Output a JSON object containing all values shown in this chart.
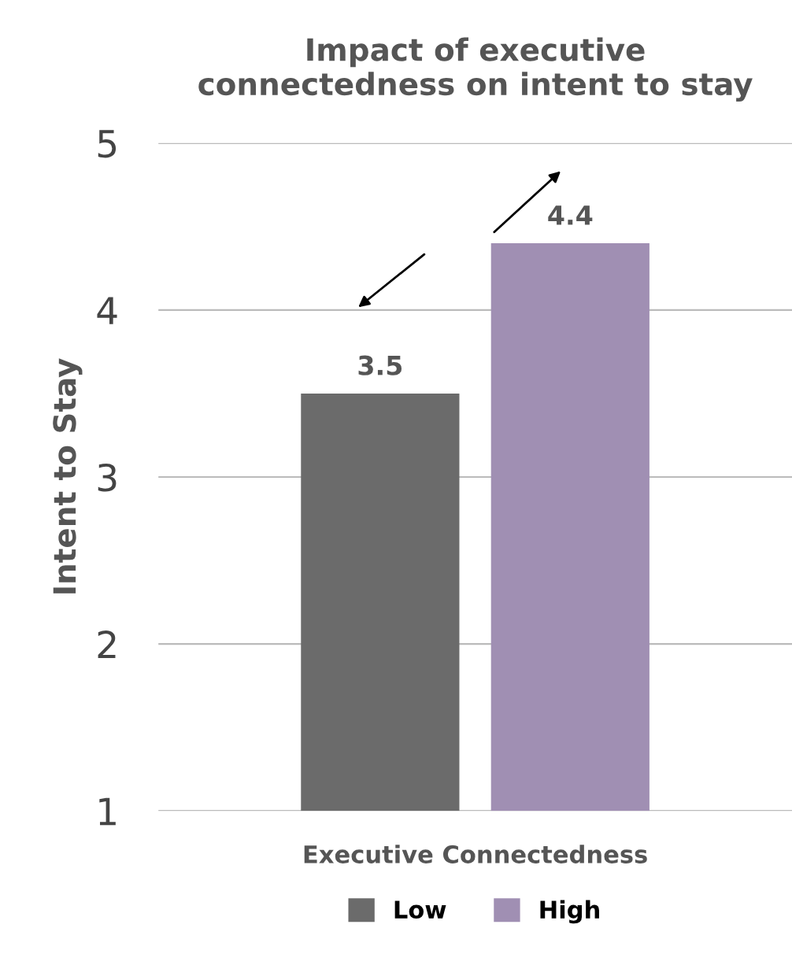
{
  "chart_data": {
    "type": "bar",
    "title": "Impact of executive\nconnectedness on intent to stay",
    "xlabel": "Executive Connectedness",
    "ylabel": "Intent to Stay",
    "categories": [
      null
    ],
    "series": [
      {
        "name": "Low",
        "color": "#6b6b6b",
        "values": [
          3.5
        ]
      },
      {
        "name": "High",
        "color": "#a08fb3",
        "values": [
          4.4
        ]
      }
    ],
    "ylim": [
      1,
      5
    ],
    "yticks": [
      1,
      2,
      3,
      4,
      5
    ],
    "grid": "y",
    "legend": "bottom",
    "data_labels": true
  }
}
